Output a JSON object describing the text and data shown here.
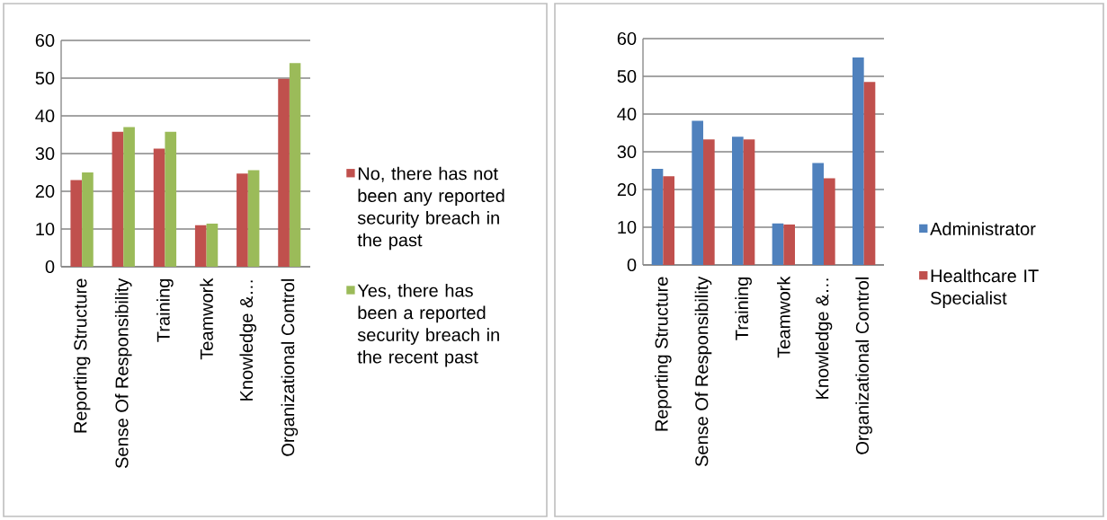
{
  "chart_data": [
    {
      "type": "bar",
      "categories": [
        "Reporting Structure",
        "Sense Of Responsibility",
        "Training",
        "Teamwork",
        "Knowledge &…",
        "Organizational Control"
      ],
      "series": [
        {
          "name": "No, there has not been any reported security breach in the past",
          "color": "#c0504d",
          "values": [
            23,
            35.8,
            31.3,
            11,
            24.7,
            49.8
          ]
        },
        {
          "name": "Yes, there has been a reported security breach in the recent past",
          "color": "#9bbb59",
          "values": [
            25,
            37,
            35.8,
            11.4,
            25.6,
            54
          ]
        }
      ],
      "ylim": [
        0,
        60
      ],
      "yticks": [
        0,
        10,
        20,
        30,
        40,
        50,
        60
      ],
      "grid": "y",
      "legend": "right"
    },
    {
      "type": "bar",
      "categories": [
        "Reporting Structure",
        "Sense Of Responsibility",
        "Training",
        "Teamwork",
        "Knowledge &…",
        "Organizational Control"
      ],
      "series": [
        {
          "name": "Administrator",
          "color": "#4f81bd",
          "values": [
            25.5,
            38.2,
            34,
            11,
            27,
            55
          ]
        },
        {
          "name": "Healthcare IT Specialist",
          "color": "#c0504d",
          "values": [
            23.5,
            33.3,
            33.3,
            10.7,
            23,
            48.5
          ]
        }
      ],
      "ylim": [
        0,
        60
      ],
      "yticks": [
        0,
        10,
        20,
        30,
        40,
        50,
        60
      ],
      "grid": "y",
      "legend": "right"
    }
  ]
}
